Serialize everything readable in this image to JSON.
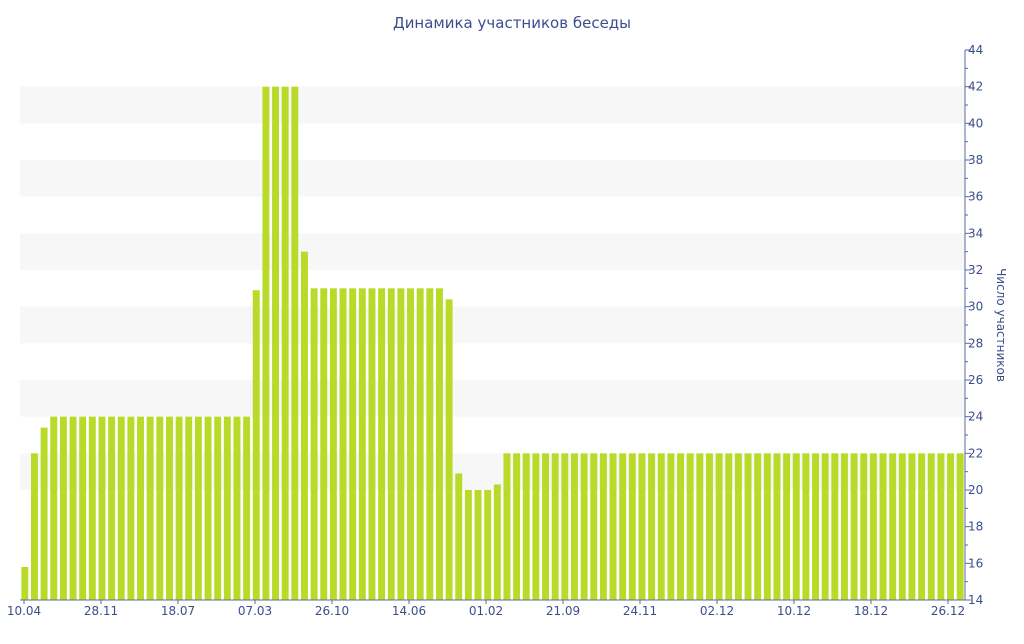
{
  "chart_data": {
    "type": "bar",
    "title": "Динамика участников беседы",
    "ylabel": "Число участников",
    "xlabel": "",
    "ylim": [
      14,
      44
    ],
    "y_ticks": [
      14,
      16,
      18,
      20,
      22,
      24,
      26,
      28,
      30,
      32,
      34,
      36,
      38,
      40,
      42,
      44
    ],
    "y_axis_side": "right",
    "x_tick_labels": [
      "10.04",
      "28.11",
      "18.07",
      "07.03",
      "26.10",
      "14.06",
      "01.02",
      "21.09",
      "24.11",
      "02.12",
      "10.12",
      "18.12",
      "26.12"
    ],
    "grid": "horizontal bands",
    "legend": "none",
    "values": [
      15.8,
      22,
      23.4,
      24,
      24,
      24,
      24,
      24,
      24,
      24,
      24,
      24,
      24,
      24,
      24,
      24,
      24,
      24,
      24,
      24,
      24,
      24,
      24,
      24,
      30.9,
      42,
      42,
      42,
      42,
      33,
      31,
      31,
      31,
      31,
      31,
      31,
      31,
      31,
      31,
      31,
      31,
      31,
      31,
      31,
      30.4,
      20.9,
      20,
      20,
      20,
      20.3,
      22,
      22,
      22,
      22,
      22,
      22,
      22,
      22,
      22,
      22,
      22,
      22,
      22,
      22,
      22,
      22,
      22,
      22,
      22,
      22,
      22,
      22,
      22,
      22,
      22,
      22,
      22,
      22,
      22,
      22,
      22,
      22,
      22,
      22,
      22,
      22,
      22,
      22,
      22,
      22,
      22,
      22,
      22,
      22,
      22,
      22,
      22,
      22
    ]
  },
  "colors": {
    "bar": "#bada2a",
    "title": "#3b4e8c",
    "axis": "#5a6aa0",
    "band": "#f7f7f7"
  }
}
